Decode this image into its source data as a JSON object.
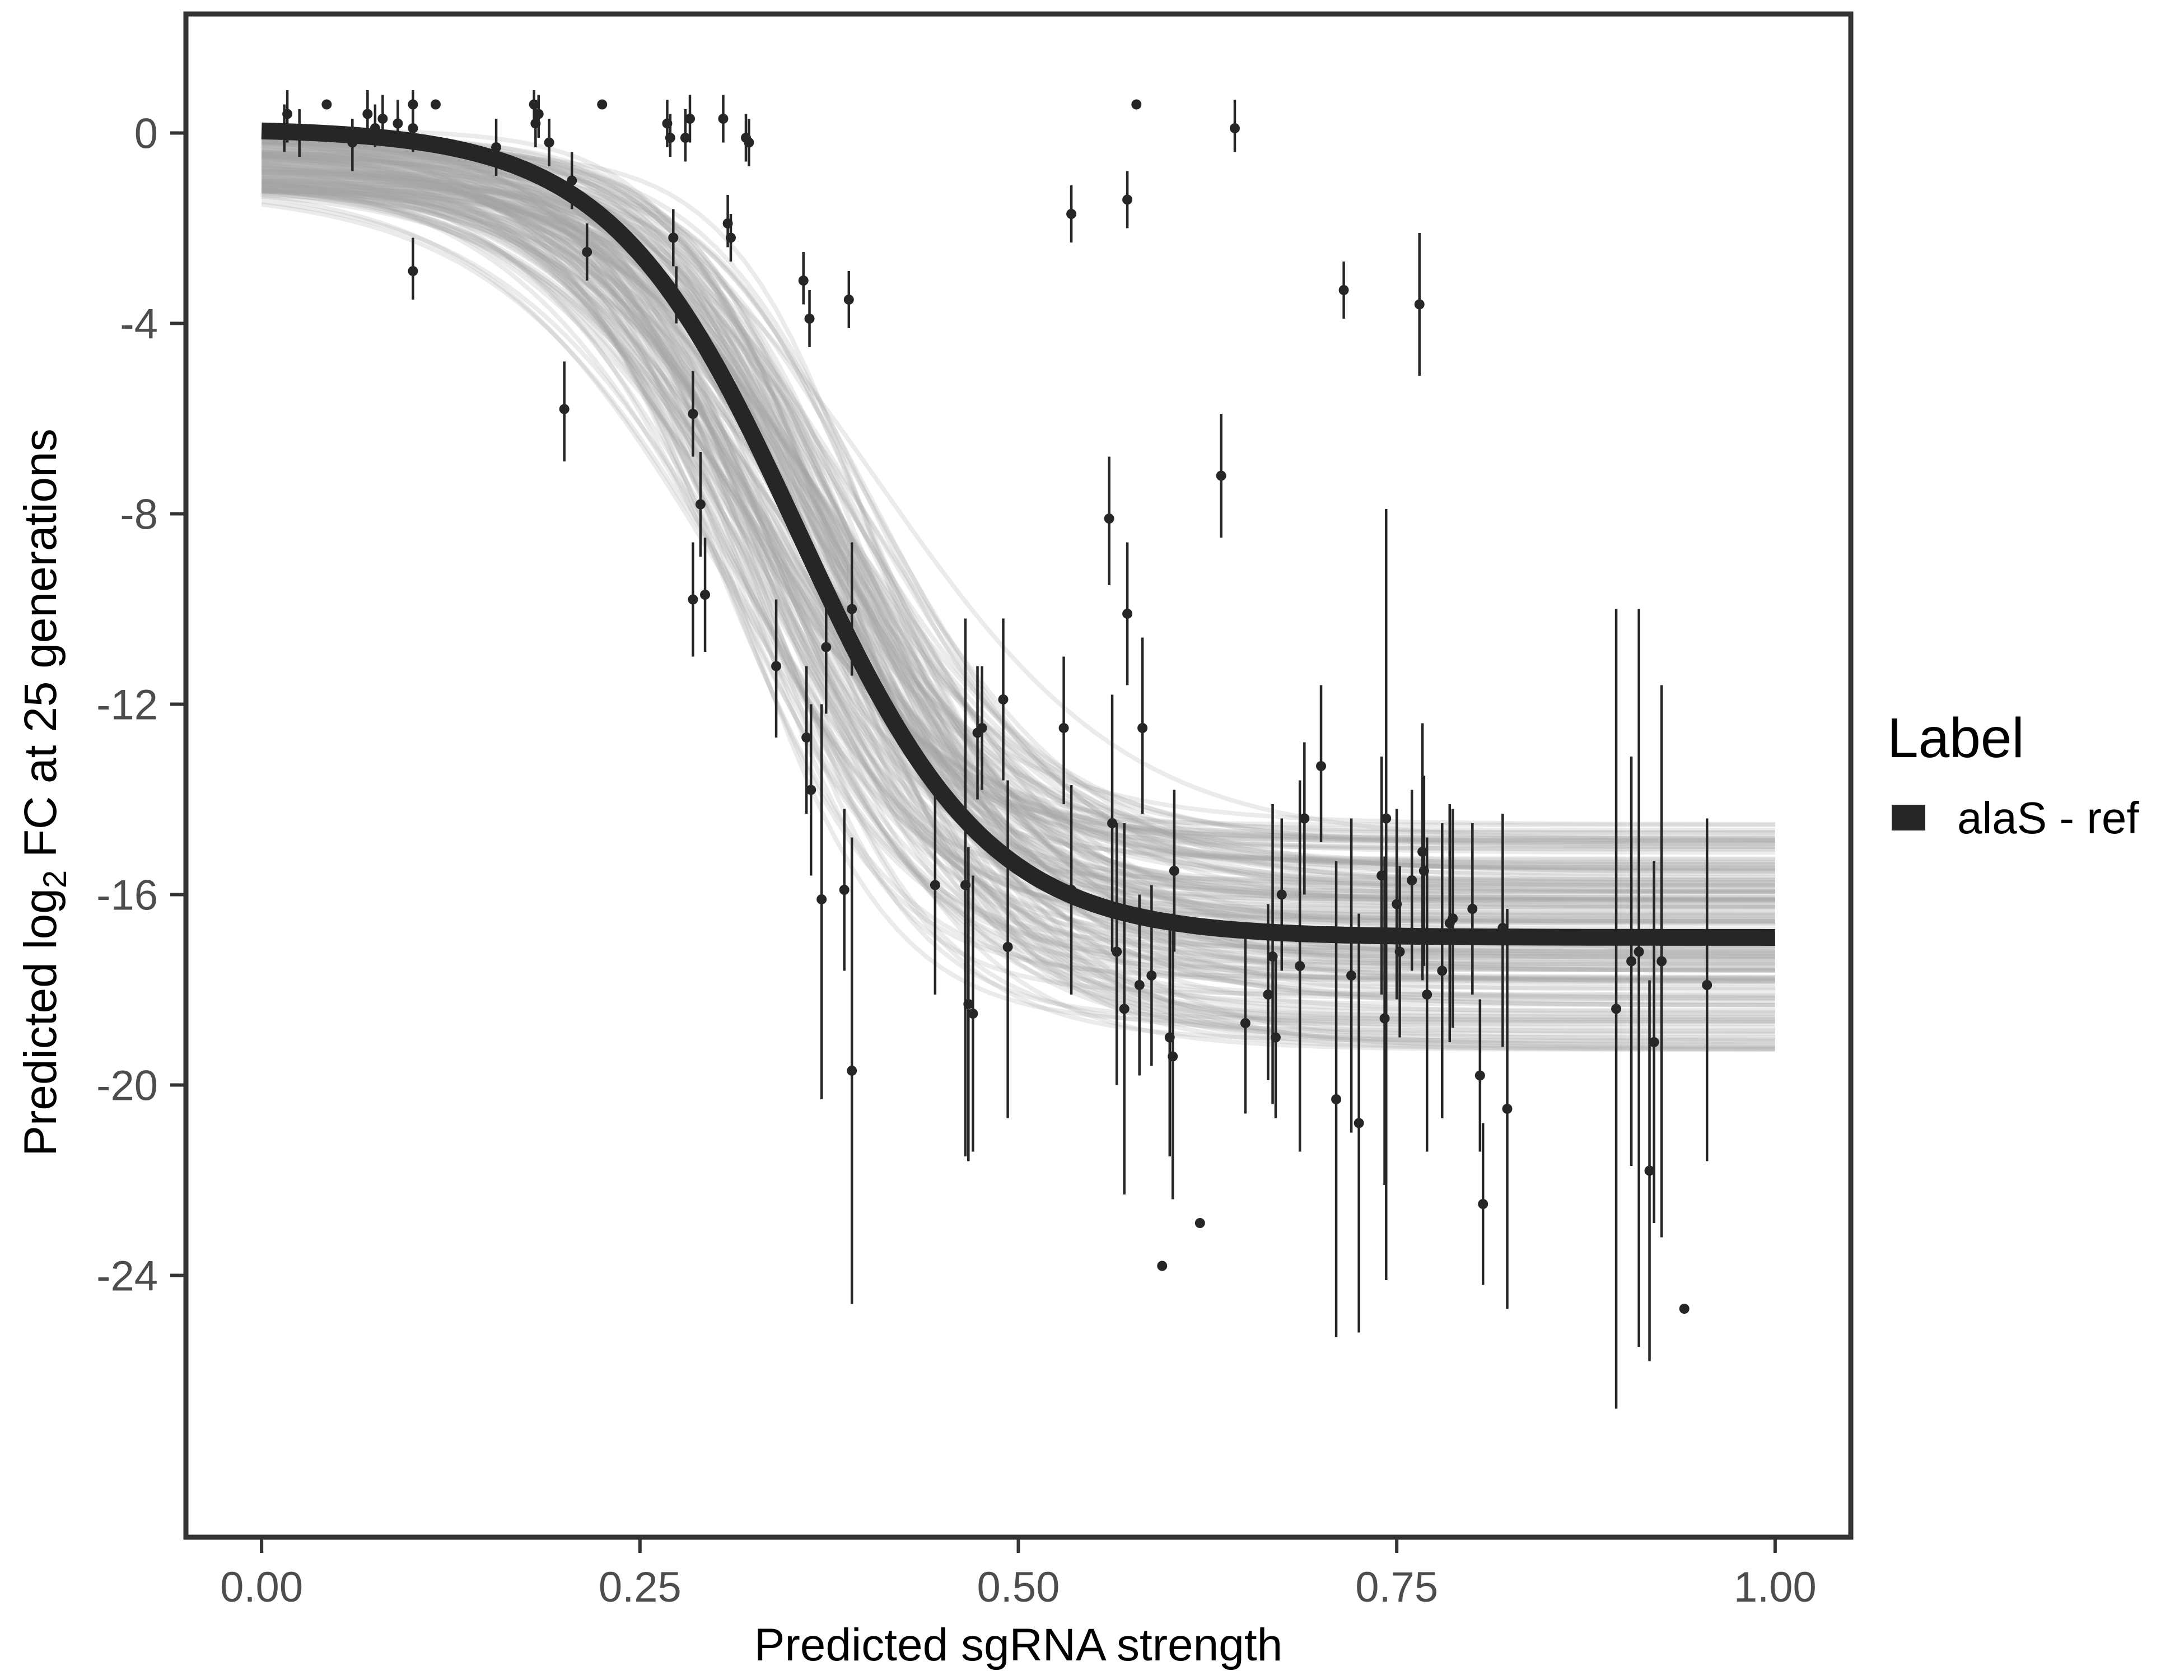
{
  "chart_data": {
    "type": "scatter",
    "title": "",
    "xlabel": "Predicted sgRNA strength",
    "ylabel_prefix": "Predicted  log",
    "ylabel_subscript": "2",
    "ylabel_suffix": " FC at 25 generations",
    "xlim": [
      -0.05,
      1.05
    ],
    "ylim": [
      -29.5,
      2.5
    ],
    "x_ticks": [
      0,
      0.25,
      0.5,
      0.75,
      1.0
    ],
    "x_tick_labels": [
      "0.00",
      "0.25",
      "0.50",
      "0.75",
      "1.00"
    ],
    "y_ticks": [
      0,
      -4,
      -8,
      -12,
      -16,
      -20,
      -24
    ],
    "y_tick_labels": [
      "0",
      "-4",
      "-8",
      "-12",
      "-16",
      "-20",
      "-24"
    ],
    "grid": false,
    "legend": {
      "title": "Label",
      "placement": "right",
      "entries": [
        "alaS - ref"
      ]
    },
    "colors": {
      "fit": "#262626",
      "band": "#a6a6a6",
      "points": "#262626",
      "frame": "#333333"
    },
    "fit_curve": {
      "name": "alaS - ref",
      "model": "logistic",
      "upper": 0.1,
      "lower": -16.9,
      "midpoint": 0.355,
      "scale": 0.062,
      "posterior_draws_shown": true
    },
    "points": [
      {
        "x": 0.015,
        "y": 0.1,
        "lo": -0.4,
        "hi": 0.6
      },
      {
        "x": 0.017,
        "y": 0.4,
        "lo": -0.2,
        "hi": 0.9
      },
      {
        "x": 0.025,
        "y": 0.0,
        "lo": -0.5,
        "hi": 0.5
      },
      {
        "x": 0.043,
        "y": 0.6
      },
      {
        "x": 0.06,
        "y": -0.2,
        "lo": -0.8,
        "hi": 0.3
      },
      {
        "x": 0.07,
        "y": 0.4,
        "lo": -0.1,
        "hi": 0.9
      },
      {
        "x": 0.075,
        "y": 0.1,
        "lo": -0.3,
        "hi": 0.6
      },
      {
        "x": 0.08,
        "y": 0.3,
        "lo": -0.2,
        "hi": 0.8
      },
      {
        "x": 0.09,
        "y": 0.2,
        "lo": -0.3,
        "hi": 0.7
      },
      {
        "x": 0.1,
        "y": 0.6,
        "lo": 0.1,
        "hi": 0.9
      },
      {
        "x": 0.1,
        "y": 0.1,
        "lo": -0.4,
        "hi": 0.5
      },
      {
        "x": 0.1,
        "y": -2.9,
        "lo": -3.5,
        "hi": -2.2
      },
      {
        "x": 0.115,
        "y": 0.6
      },
      {
        "x": 0.155,
        "y": -0.3,
        "lo": -0.9,
        "hi": 0.3
      },
      {
        "x": 0.18,
        "y": 0.6,
        "lo": 0.1,
        "hi": 0.9
      },
      {
        "x": 0.181,
        "y": 0.2,
        "lo": -0.3,
        "hi": 0.7
      },
      {
        "x": 0.183,
        "y": 0.4,
        "lo": -0.1,
        "hi": 0.8
      },
      {
        "x": 0.19,
        "y": -0.2,
        "lo": -0.7,
        "hi": 0.3
      },
      {
        "x": 0.2,
        "y": -5.8,
        "lo": -6.9,
        "hi": -4.8
      },
      {
        "x": 0.205,
        "y": -1.0,
        "lo": -1.6,
        "hi": -0.4
      },
      {
        "x": 0.215,
        "y": -2.5,
        "lo": -3.1,
        "hi": -1.9
      },
      {
        "x": 0.225,
        "y": 0.6
      },
      {
        "x": 0.268,
        "y": 0.2,
        "lo": -0.3,
        "hi": 0.7
      },
      {
        "x": 0.27,
        "y": -0.1,
        "lo": -0.5,
        "hi": 0.4
      },
      {
        "x": 0.272,
        "y": -2.2,
        "lo": -2.8,
        "hi": -1.6
      },
      {
        "x": 0.274,
        "y": -3.4,
        "lo": -4.0,
        "hi": -2.8
      },
      {
        "x": 0.28,
        "y": -0.1,
        "lo": -0.6,
        "hi": 0.5
      },
      {
        "x": 0.283,
        "y": 0.3,
        "lo": -0.2,
        "hi": 0.8
      },
      {
        "x": 0.285,
        "y": -5.9,
        "lo": -6.8,
        "hi": -5.0
      },
      {
        "x": 0.285,
        "y": -9.8,
        "lo": -11.0,
        "hi": -8.6
      },
      {
        "x": 0.29,
        "y": -7.8,
        "lo": -8.9,
        "hi": -6.7
      },
      {
        "x": 0.293,
        "y": -9.7,
        "lo": -10.9,
        "hi": -8.5
      },
      {
        "x": 0.305,
        "y": 0.3,
        "lo": -0.2,
        "hi": 0.8
      },
      {
        "x": 0.308,
        "y": -1.9,
        "lo": -2.4,
        "hi": -1.3
      },
      {
        "x": 0.31,
        "y": -2.2,
        "lo": -2.7,
        "hi": -1.7
      },
      {
        "x": 0.32,
        "y": -0.1,
        "lo": -0.6,
        "hi": 0.4
      },
      {
        "x": 0.322,
        "y": -0.2,
        "lo": -0.7,
        "hi": 0.3
      },
      {
        "x": 0.34,
        "y": -11.2,
        "lo": -12.7,
        "hi": -9.8
      },
      {
        "x": 0.358,
        "y": -3.1,
        "lo": -3.6,
        "hi": -2.5
      },
      {
        "x": 0.362,
        "y": -3.9,
        "lo": -4.5,
        "hi": -3.3
      },
      {
        "x": 0.36,
        "y": -12.7,
        "lo": -14.3,
        "hi": -11.2
      },
      {
        "x": 0.363,
        "y": -13.8,
        "lo": -15.6,
        "hi": -12.0
      },
      {
        "x": 0.37,
        "y": -16.1,
        "lo": -20.3,
        "hi": -12.0
      },
      {
        "x": 0.373,
        "y": -10.8,
        "lo": -12.2,
        "hi": -9.4
      },
      {
        "x": 0.385,
        "y": -15.9,
        "lo": -17.6,
        "hi": -14.2
      },
      {
        "x": 0.388,
        "y": -3.5,
        "lo": -4.1,
        "hi": -2.9
      },
      {
        "x": 0.39,
        "y": -19.7,
        "lo": -24.6,
        "hi": -14.8
      },
      {
        "x": 0.39,
        "y": -10.0,
        "lo": -11.4,
        "hi": -8.6
      },
      {
        "x": 0.445,
        "y": -15.8,
        "lo": -18.1,
        "hi": -13.6
      },
      {
        "x": 0.465,
        "y": -15.8,
        "lo": -21.5,
        "hi": -10.2
      },
      {
        "x": 0.467,
        "y": -18.3,
        "lo": -21.6,
        "hi": -15.0
      },
      {
        "x": 0.47,
        "y": -18.5,
        "lo": -21.4,
        "hi": -15.6
      },
      {
        "x": 0.473,
        "y": -12.6,
        "lo": -14.0,
        "hi": -11.2
      },
      {
        "x": 0.476,
        "y": -12.5,
        "lo": -13.8,
        "hi": -11.2
      },
      {
        "x": 0.49,
        "y": -11.9,
        "lo": -13.6,
        "hi": -10.2
      },
      {
        "x": 0.493,
        "y": -17.1,
        "lo": -20.7,
        "hi": -13.6
      },
      {
        "x": 0.53,
        "y": -12.5,
        "lo": -14.1,
        "hi": -11.0
      },
      {
        "x": 0.535,
        "y": -15.9,
        "lo": -18.1,
        "hi": -13.7
      },
      {
        "x": 0.535,
        "y": -1.7,
        "lo": -2.3,
        "hi": -1.1
      },
      {
        "x": 0.56,
        "y": -8.1,
        "lo": -9.5,
        "hi": -6.8
      },
      {
        "x": 0.562,
        "y": -14.5,
        "lo": -17.2,
        "hi": -11.8
      },
      {
        "x": 0.565,
        "y": -17.2,
        "lo": -20.0,
        "hi": -14.5
      },
      {
        "x": 0.57,
        "y": -18.4,
        "lo": -22.3,
        "hi": -14.5
      },
      {
        "x": 0.572,
        "y": -10.1,
        "lo": -11.6,
        "hi": -8.6
      },
      {
        "x": 0.572,
        "y": -1.4,
        "lo": -2.0,
        "hi": -0.8
      },
      {
        "x": 0.578,
        "y": 0.6
      },
      {
        "x": 0.58,
        "y": -17.9,
        "lo": -19.8,
        "hi": -16.0
      },
      {
        "x": 0.582,
        "y": -12.5,
        "lo": -14.3,
        "hi": -10.6
      },
      {
        "x": 0.588,
        "y": -17.7,
        "lo": -19.6,
        "hi": -15.8
      },
      {
        "x": 0.595,
        "y": -23.8
      },
      {
        "x": 0.6,
        "y": -19.0,
        "lo": -21.5,
        "hi": -16.5
      },
      {
        "x": 0.602,
        "y": -19.4,
        "lo": -22.4,
        "hi": -16.4
      },
      {
        "x": 0.603,
        "y": -15.5,
        "lo": -17.2,
        "hi": -13.8
      },
      {
        "x": 0.62,
        "y": -22.9
      },
      {
        "x": 0.634,
        "y": -7.2,
        "lo": -8.5,
        "hi": -5.9
      },
      {
        "x": 0.643,
        "y": 0.1,
        "lo": -0.4,
        "hi": 0.7
      },
      {
        "x": 0.65,
        "y": -18.7,
        "lo": -20.6,
        "hi": -16.8
      },
      {
        "x": 0.665,
        "y": -18.1,
        "lo": -19.9,
        "hi": -16.2
      },
      {
        "x": 0.668,
        "y": -17.3,
        "lo": -20.4,
        "hi": -14.1
      },
      {
        "x": 0.67,
        "y": -19.0,
        "lo": -20.7,
        "hi": -17.3
      },
      {
        "x": 0.674,
        "y": -16.0,
        "lo": -17.6,
        "hi": -14.4
      },
      {
        "x": 0.686,
        "y": -17.5,
        "lo": -21.4,
        "hi": -13.6
      },
      {
        "x": 0.689,
        "y": -14.4,
        "lo": -16.0,
        "hi": -12.8
      },
      {
        "x": 0.7,
        "y": -13.3,
        "lo": -14.9,
        "hi": -11.6
      },
      {
        "x": 0.71,
        "y": -20.3,
        "lo": -25.3,
        "hi": -15.3
      },
      {
        "x": 0.715,
        "y": -3.3,
        "lo": -3.9,
        "hi": -2.7
      },
      {
        "x": 0.72,
        "y": -17.7,
        "lo": -21.0,
        "hi": -14.4
      },
      {
        "x": 0.725,
        "y": -20.8,
        "lo": -25.2,
        "hi": -16.4
      },
      {
        "x": 0.74,
        "y": -15.6,
        "lo": -18.1,
        "hi": -13.1
      },
      {
        "x": 0.742,
        "y": -18.6,
        "lo": -22.1,
        "hi": -15.2
      },
      {
        "x": 0.743,
        "y": -14.4,
        "lo": -24.1,
        "hi": -7.9
      },
      {
        "x": 0.75,
        "y": -16.2,
        "lo": -18.2,
        "hi": -14.2
      },
      {
        "x": 0.752,
        "y": -17.2,
        "lo": -19.0,
        "hi": -15.4
      },
      {
        "x": 0.76,
        "y": -15.7,
        "lo": -17.6,
        "hi": -13.8
      },
      {
        "x": 0.765,
        "y": -3.6,
        "lo": -5.1,
        "hi": -2.1
      },
      {
        "x": 0.767,
        "y": -15.1,
        "lo": -17.8,
        "hi": -12.4
      },
      {
        "x": 0.768,
        "y": -15.5,
        "lo": -17.5,
        "hi": -13.5
      },
      {
        "x": 0.77,
        "y": -18.1,
        "lo": -21.4,
        "hi": -14.8
      },
      {
        "x": 0.78,
        "y": -17.6,
        "lo": -20.7,
        "hi": -14.5
      },
      {
        "x": 0.785,
        "y": -16.6,
        "lo": -19.1,
        "hi": -14.1
      },
      {
        "x": 0.787,
        "y": -16.5,
        "lo": -18.8,
        "hi": -14.2
      },
      {
        "x": 0.8,
        "y": -16.3,
        "lo": -18.1,
        "hi": -14.5
      },
      {
        "x": 0.805,
        "y": -19.8,
        "lo": -21.4,
        "hi": -18.2
      },
      {
        "x": 0.807,
        "y": -22.5,
        "lo": -24.2,
        "hi": -20.8
      },
      {
        "x": 0.82,
        "y": -16.7,
        "lo": -19.2,
        "hi": -14.3
      },
      {
        "x": 0.823,
        "y": -20.5,
        "lo": -24.7,
        "hi": -16.3
      },
      {
        "x": 0.895,
        "y": -18.4,
        "lo": -26.8,
        "hi": -10.0
      },
      {
        "x": 0.905,
        "y": -17.4,
        "lo": -21.7,
        "hi": -13.1
      },
      {
        "x": 0.91,
        "y": -17.2,
        "lo": -25.5,
        "hi": -10.0
      },
      {
        "x": 0.917,
        "y": -21.8,
        "lo": -25.8,
        "hi": -17.8
      },
      {
        "x": 0.92,
        "y": -19.1,
        "lo": -22.9,
        "hi": -15.3
      },
      {
        "x": 0.925,
        "y": -17.4,
        "lo": -23.2,
        "hi": -11.6
      },
      {
        "x": 0.94,
        "y": -24.7
      },
      {
        "x": 0.955,
        "y": -17.9,
        "lo": -21.6,
        "hi": -14.4
      }
    ]
  }
}
